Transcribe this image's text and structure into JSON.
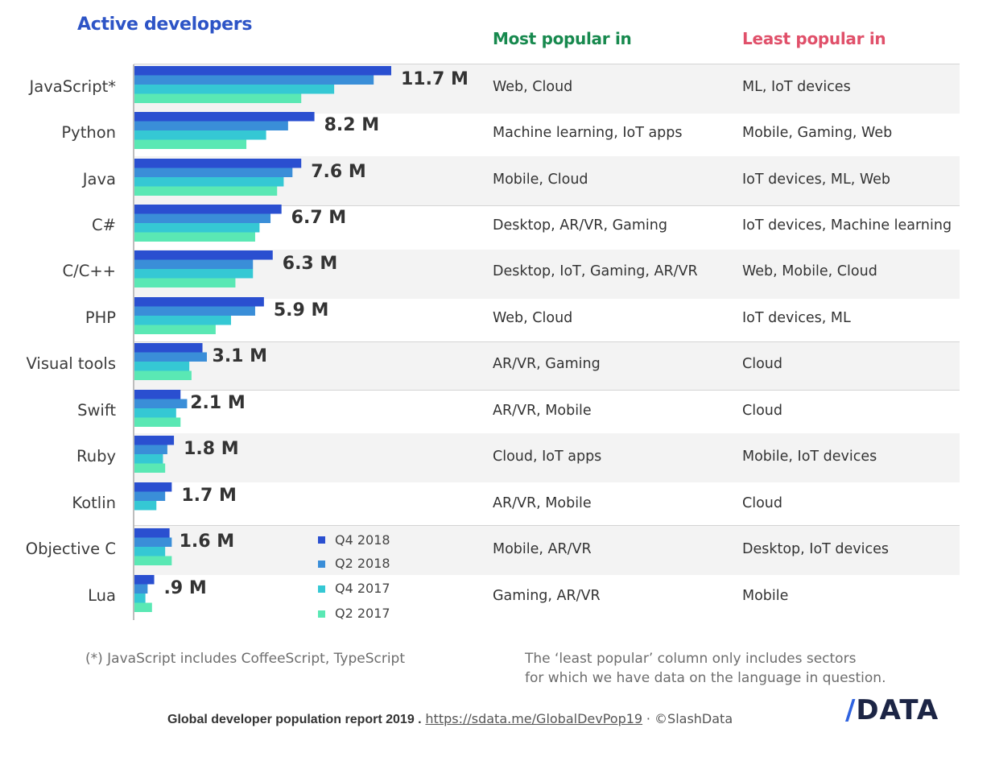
{
  "header": {
    "active": "Active developers",
    "most": "Most popular in",
    "least": "Least popular in"
  },
  "colors": {
    "active": "#2d54c6",
    "most": "#17894e",
    "least": "#e0506a",
    "series": [
      "#2a4fd0",
      "#3a8ed8",
      "#35c8d4",
      "#5ae8b4"
    ]
  },
  "chart_data": {
    "type": "bar",
    "orientation": "horizontal",
    "title": "Active developers",
    "unit": "M",
    "xlim": [
      0,
      11.7
    ],
    "categories": [
      "JavaScript*",
      "Python",
      "Java",
      "C#",
      "C/C++",
      "PHP",
      "Visual tools",
      "Swift",
      "Ruby",
      "Kotlin",
      "Objective C",
      "Lua"
    ],
    "value_labels": [
      "11.7 M",
      "8.2 M",
      "7.6 M",
      "6.7 M",
      "6.3 M",
      "5.9 M",
      "3.1 M",
      "2.1 M",
      "1.8 M",
      "1.7 M",
      "1.6 M",
      ".9 M"
    ],
    "series": [
      {
        "name": "Q4 2018",
        "values": [
          11.7,
          8.2,
          7.6,
          6.7,
          6.3,
          5.9,
          3.1,
          2.1,
          1.8,
          1.7,
          1.6,
          0.9
        ]
      },
      {
        "name": "Q2 2018",
        "values": [
          10.9,
          7.0,
          7.2,
          6.2,
          5.4,
          5.5,
          3.3,
          2.4,
          1.5,
          1.4,
          1.7,
          0.6
        ]
      },
      {
        "name": "Q4 2017",
        "values": [
          9.1,
          6.0,
          6.8,
          5.7,
          5.4,
          4.4,
          2.5,
          1.9,
          1.3,
          1.0,
          1.4,
          0.5
        ]
      },
      {
        "name": "Q2 2017",
        "values": [
          7.6,
          5.1,
          6.5,
          5.5,
          4.6,
          3.7,
          2.6,
          2.1,
          1.4,
          0.0,
          1.7,
          0.8
        ]
      }
    ]
  },
  "rows": [
    {
      "most": "Web, Cloud",
      "least": "ML, IoT devices"
    },
    {
      "most": "Machine learning, IoT apps",
      "least": "Mobile, Gaming, Web"
    },
    {
      "most": "Mobile, Cloud",
      "least": "IoT devices, ML, Web"
    },
    {
      "most": "Desktop, AR/VR, Gaming",
      "least": "IoT devices, Machine learning"
    },
    {
      "most": "Desktop, IoT, Gaming, AR/VR",
      "least": "Web, Mobile, Cloud"
    },
    {
      "most": "Web, Cloud",
      "least": "IoT devices, ML"
    },
    {
      "most": "AR/VR, Gaming",
      "least": "Cloud"
    },
    {
      "most": "AR/VR, Mobile",
      "least": "Cloud"
    },
    {
      "most": "Cloud, IoT apps",
      "least": "Mobile, IoT devices"
    },
    {
      "most": "AR/VR, Mobile",
      "least": "Cloud"
    },
    {
      "most": "Mobile, AR/VR",
      "least": "Desktop, IoT devices"
    },
    {
      "most": "Gaming, AR/VR",
      "least": "Mobile"
    }
  ],
  "legend": [
    "Q4 2018",
    "Q2 2018",
    "Q4 2017",
    "Q2 2017"
  ],
  "notes": {
    "js": "(*) JavaScript includes CoffeeScript, TypeScript",
    "least_line1": "The ‘least popular’ column only includes sectors",
    "least_line2": "for which we have data on the language in question."
  },
  "footer": {
    "report": "Global developer population report 2019 .",
    "link": "https://sdata.me/GlobalDevPop19",
    "copyright": "· ©SlashData",
    "logo_slash": "/",
    "logo_text": "DATA"
  }
}
